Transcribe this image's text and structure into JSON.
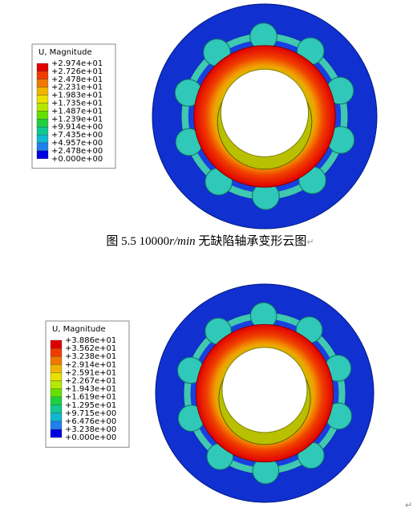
{
  "figures": [
    {
      "legend": {
        "title": "U, Magnitude",
        "labels": [
          "+2.974e+01",
          "+2.726e+01",
          "+2.478e+01",
          "+2.231e+01",
          "+1.983e+01",
          "+1.735e+01",
          "+1.487e+01",
          "+1.239e+01",
          "+9.914e+00",
          "+7.435e+00",
          "+4.957e+00",
          "+2.478e+00",
          "+0.000e+00"
        ]
      },
      "caption": {
        "prefix": "图 5.5 10000",
        "unit": "r/min",
        "suffix": " 无缺陷轴承变形云图",
        "mark": "↵"
      }
    },
    {
      "legend": {
        "title": "U, Magnitude",
        "labels": [
          "+3.886e+01",
          "+3.562e+01",
          "+3.238e+01",
          "+2.914e+01",
          "+2.591e+01",
          "+2.267e+01",
          "+1.943e+01",
          "+1.619e+01",
          "+1.295e+01",
          "+9.715e+00",
          "+6.476e+00",
          "+3.238e+00",
          "+0.000e+00"
        ]
      }
    }
  ],
  "end_mark": "↵"
}
